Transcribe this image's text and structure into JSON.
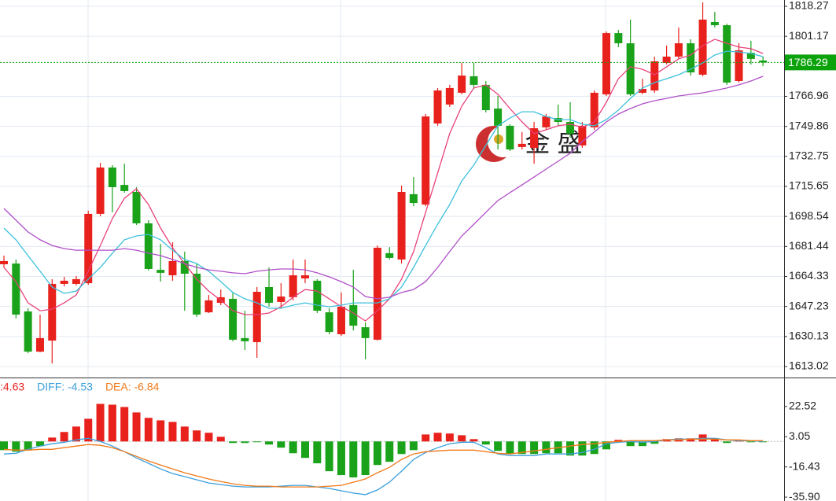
{
  "chart_data": [
    {
      "type": "candlestick",
      "up_color": "#e8211c",
      "down_color": "#1aa31a",
      "ohlc": {
        "open": [
          1671.3,
          1671.7,
          1644.4,
          1621.5,
          1627.8,
          1660.1,
          1660.1,
          1660.5,
          1700.0,
          1726.4,
          1716.5,
          1712.5,
          1694.6,
          1668.1,
          1665.0,
          1673.1,
          1665.9,
          1643.9,
          1649.3,
          1651.6,
          1629.2,
          1626.9,
          1658.3,
          1649.8,
          1652.5,
          1663.2,
          1661.9,
          1643.9,
          1631.4,
          1648.0,
          1635.4,
          1628.3,
          1677.6,
          1674.0,
          1711.2,
          1705.3,
          1751.5,
          1762.3,
          1769.0,
          1778.4,
          1773.5,
          1760.0,
          1750.2,
          1738.1,
          1737.6,
          1749.3,
          1754.6,
          1752.4,
          1739.0,
          1749.3,
          1768.1,
          1803.0,
          1797.2,
          1769.0,
          1770.3,
          1786.0,
          1789.6,
          1797.2,
          1779.3,
          1809.3,
          1807.5,
          1775.7,
          1791.8,
          1787.4
        ],
        "high": [
          1676.2,
          1674.0,
          1646.2,
          1642.6,
          1662.8,
          1664.1,
          1664.6,
          1701.8,
          1729.1,
          1727.8,
          1728.6,
          1715.2,
          1696.4,
          1682.9,
          1683.8,
          1678.5,
          1671.7,
          1653.8,
          1656.9,
          1655.2,
          1644.8,
          1658.3,
          1669.5,
          1660.5,
          1674.0,
          1674.0,
          1662.8,
          1646.2,
          1655.2,
          1668.1,
          1638.1,
          1682.0,
          1681.1,
          1716.1,
          1721.0,
          1756.9,
          1771.7,
          1773.5,
          1786.0,
          1786.0,
          1775.7,
          1767.2,
          1751.1,
          1746.6,
          1752.4,
          1756.9,
          1762.3,
          1763.6,
          1752.4,
          1770.3,
          1803.9,
          1804.8,
          1810.7,
          1777.0,
          1789.6,
          1795.9,
          1806.2,
          1799.5,
          1820.5,
          1815.1,
          1808.4,
          1797.2,
          1798.6,
          1789.6
        ],
        "low": [
          1669.5,
          1640.4,
          1620.6,
          1621.1,
          1614.8,
          1658.7,
          1659.2,
          1659.6,
          1698.6,
          1700.9,
          1712.1,
          1693.7,
          1667.7,
          1661.4,
          1661.9,
          1644.8,
          1641.3,
          1643.5,
          1648.0,
          1627.4,
          1622.4,
          1618.0,
          1647.1,
          1646.2,
          1650.7,
          1660.5,
          1643.5,
          1631.4,
          1630.5,
          1633.6,
          1617.1,
          1627.8,
          1674.0,
          1671.7,
          1704.4,
          1704.4,
          1750.2,
          1760.9,
          1768.1,
          1771.7,
          1757.8,
          1736.7,
          1735.8,
          1736.7,
          1728.6,
          1747.9,
          1750.2,
          1743.4,
          1737.6,
          1747.9,
          1767.2,
          1795.0,
          1767.2,
          1768.1,
          1769.0,
          1785.1,
          1788.3,
          1778.8,
          1778.4,
          1806.2,
          1773.5,
          1774.8,
          1785.1,
          1784.2
        ],
        "close": [
          1673.1,
          1642.6,
          1621.5,
          1629.2,
          1660.1,
          1661.9,
          1662.8,
          1700.0,
          1726.4,
          1715.2,
          1713.0,
          1694.6,
          1668.6,
          1666.4,
          1673.1,
          1665.9,
          1642.6,
          1650.7,
          1652.5,
          1628.3,
          1627.4,
          1655.6,
          1649.3,
          1652.9,
          1665.0,
          1665.0,
          1644.8,
          1632.7,
          1647.1,
          1636.3,
          1629.2,
          1680.7,
          1674.9,
          1712.5,
          1706.2,
          1755.5,
          1770.3,
          1771.7,
          1778.8,
          1773.5,
          1759.1,
          1750.2,
          1736.7,
          1739.9,
          1748.8,
          1755.5,
          1752.4,
          1745.7,
          1750.2,
          1769.0,
          1803.0,
          1797.2,
          1768.1,
          1771.2,
          1786.9,
          1789.6,
          1797.2,
          1780.6,
          1810.7,
          1807.5,
          1774.8,
          1793.2,
          1788.3,
          1786.29
        ]
      },
      "lines": [
        {
          "color": "#e8417a",
          "values": [
            1669.5,
            1661.4,
            1649.3,
            1644.8,
            1645.7,
            1649.3,
            1653.8,
            1667.3,
            1682.0,
            1697.3,
            1708.9,
            1714.3,
            1705.3,
            1691.9,
            1680.7,
            1671.7,
            1662.8,
            1656.0,
            1650.7,
            1644.8,
            1642.6,
            1642.6,
            1643.5,
            1647.1,
            1652.5,
            1656.9,
            1656.0,
            1651.6,
            1647.1,
            1643.5,
            1639.0,
            1644.8,
            1651.6,
            1662.8,
            1678.5,
            1700.9,
            1723.3,
            1745.7,
            1761.4,
            1771.7,
            1773.5,
            1768.1,
            1760.0,
            1752.4,
            1745.7,
            1747.9,
            1750.2,
            1751.1,
            1749.3,
            1752.4,
            1763.6,
            1777.0,
            1783.8,
            1782.4,
            1779.3,
            1783.8,
            1788.3,
            1790.5,
            1795.9,
            1799.5,
            1797.2,
            1795.0,
            1794.1,
            1791.4
          ]
        },
        {
          "color": "#3cc0dc",
          "values": [
            1691.9,
            1685.2,
            1676.2,
            1667.3,
            1658.3,
            1654.7,
            1656.0,
            1662.8,
            1669.5,
            1677.6,
            1685.2,
            1687.4,
            1688.3,
            1685.2,
            1679.3,
            1674.0,
            1671.7,
            1667.3,
            1661.4,
            1655.2,
            1651.6,
            1649.3,
            1646.2,
            1646.2,
            1648.0,
            1649.3,
            1648.0,
            1647.1,
            1648.0,
            1649.3,
            1649.3,
            1649.3,
            1651.6,
            1658.3,
            1669.5,
            1682.0,
            1694.1,
            1705.3,
            1718.8,
            1727.8,
            1739.0,
            1750.2,
            1754.6,
            1758.2,
            1758.2,
            1755.5,
            1753.7,
            1753.7,
            1751.1,
            1750.2,
            1753.7,
            1759.1,
            1765.8,
            1771.7,
            1774.8,
            1777.0,
            1779.3,
            1782.4,
            1786.0,
            1790.5,
            1792.7,
            1792.3,
            1791.4,
            1789.6
          ]
        },
        {
          "color": "#b04fc8",
          "values": [
            1703.1,
            1696.4,
            1689.7,
            1685.2,
            1682.0,
            1680.2,
            1679.3,
            1679.3,
            1679.3,
            1679.3,
            1680.2,
            1679.3,
            1677.6,
            1676.2,
            1674.0,
            1671.7,
            1669.5,
            1668.1,
            1667.3,
            1666.4,
            1665.9,
            1667.3,
            1668.1,
            1668.6,
            1668.6,
            1668.1,
            1666.4,
            1664.1,
            1661.4,
            1658.3,
            1652.9,
            1651.6,
            1652.5,
            1655.2,
            1656.9,
            1661.4,
            1669.5,
            1678.5,
            1687.4,
            1694.1,
            1700.9,
            1707.6,
            1712.1,
            1716.5,
            1721.0,
            1725.5,
            1730.0,
            1734.5,
            1741.2,
            1746.6,
            1752.4,
            1756.9,
            1760.0,
            1762.7,
            1764.5,
            1765.8,
            1767.2,
            1768.1,
            1769.0,
            1770.3,
            1771.7,
            1773.5,
            1775.7,
            1778.4
          ]
        }
      ],
      "last_price": 1786.29,
      "last_price_color": "#0ca20c",
      "ylim": [
        1606.75,
        1821.86
      ],
      "yticks": [
        1613.02,
        1630.13,
        1647.23,
        1664.33,
        1681.44,
        1698.54,
        1715.65,
        1732.75,
        1749.86,
        1766.96,
        1801.17,
        1818.27
      ],
      "grid": true,
      "watermark": "金 盛"
    },
    {
      "type": "macd",
      "up_color": "#e8211c",
      "down_color": "#1aa31a",
      "values": [
        -5.6,
        -6.6,
        -5.6,
        -3.0,
        2.5,
        6.1,
        9.6,
        14.6,
        24.2,
        23.7,
        22.2,
        18.7,
        15.2,
        13.6,
        12.6,
        9.6,
        7.1,
        5.6,
        3.0,
        -1.0,
        -1.0,
        -0.3,
        -2.0,
        -4.0,
        -7.6,
        -10.6,
        -14.1,
        -19.2,
        -21.7,
        -23.2,
        -21.7,
        -15.2,
        -13.1,
        -8.1,
        -5.6,
        4.5,
        5.6,
        5.1,
        4.0,
        1.5,
        -2.0,
        -6.1,
        -8.1,
        -8.1,
        -8.1,
        -7.6,
        -7.6,
        -9.1,
        -9.1,
        -8.1,
        -5.1,
        1.0,
        -3.0,
        -3.0,
        -1.5,
        1.5,
        2.0,
        2.0,
        4.5,
        1.5,
        -1.0,
        0.5,
        -0.5,
        -0.5
      ],
      "lines": [
        {
          "color": "#3a9fdc",
          "values": [
            -8.1,
            -7.6,
            -5.1,
            -3.0,
            -1.5,
            -0.5,
            1.0,
            2.0,
            0,
            -3.0,
            -6.6,
            -10.6,
            -14.1,
            -17.7,
            -20.7,
            -22.7,
            -24.7,
            -26.8,
            -27.8,
            -28.8,
            -29.3,
            -29.3,
            -29.3,
            -28.8,
            -28.3,
            -28.3,
            -29.3,
            -30.3,
            -31.8,
            -33.3,
            -34.3,
            -31.3,
            -26.3,
            -19.2,
            -11.6,
            -7.1,
            -4.0,
            -1.5,
            -0.5,
            -0.5,
            -4.0,
            -8.1,
            -9.1,
            -9.1,
            -9.1,
            -8.1,
            -8.1,
            -8.1,
            -7.1,
            -5.1,
            -1.5,
            -0.5,
            0,
            -0.5,
            0,
            1.0,
            1.5,
            1.5,
            2.0,
            2.0,
            1.0,
            0.5,
            0.5,
            0
          ]
        },
        {
          "color": "#f07a1a",
          "values": [
            -5.1,
            -5.6,
            -5.6,
            -5.1,
            -5.1,
            -4.0,
            -3.0,
            -2.0,
            -2.5,
            -4.0,
            -6.6,
            -9.6,
            -12.6,
            -15.2,
            -17.7,
            -20.2,
            -22.2,
            -24.2,
            -25.8,
            -27.3,
            -28.3,
            -28.8,
            -28.8,
            -29.3,
            -29.3,
            -29.3,
            -29.3,
            -28.8,
            -28.3,
            -26.3,
            -24.2,
            -20.2,
            -16.7,
            -11.6,
            -8.1,
            -6.6,
            -6.1,
            -5.6,
            -5.6,
            -5.6,
            -6.6,
            -7.6,
            -8.1,
            -7.1,
            -6.1,
            -5.1,
            -4.0,
            -3.0,
            -2.0,
            -1.5,
            -0.5,
            0,
            0.5,
            0.5,
            0.5,
            1.0,
            1.0,
            1.5,
            1.5,
            1.5,
            1.0,
            1.0,
            0.5,
            0.5
          ]
        }
      ],
      "legend": [
        {
          "text": ":4.63",
          "color": "#e8211c"
        },
        {
          "text": "DIFF: -4.53",
          "color": "#3a9fdc"
        },
        {
          "text": "DEA: -6.84",
          "color": "#f07a1a"
        }
      ],
      "ylim": [
        -38.4,
        40.7
      ],
      "yticks": [
        22.52,
        3.05,
        -16.43,
        {
          "value": -35.9,
          "label": "-35.90"
        }
      ],
      "grid": false
    }
  ]
}
